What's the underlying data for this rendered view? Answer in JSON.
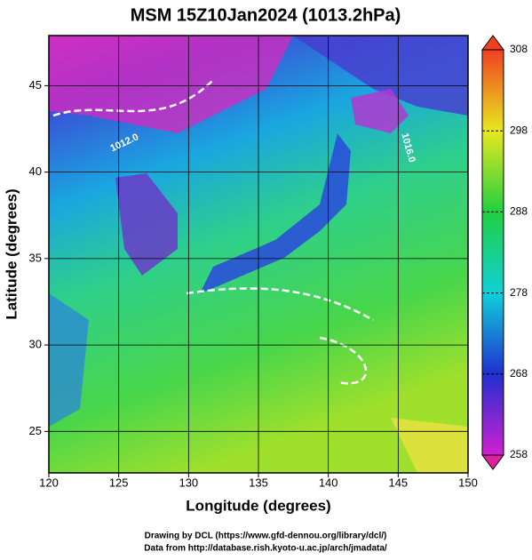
{
  "title": "MSM 15Z10Jan2024 (1013.2hPa)",
  "x_axis": {
    "label": "Longitude (degrees)",
    "lim": [
      120,
      150
    ],
    "ticks": [
      120,
      125,
      130,
      135,
      140,
      145,
      150
    ]
  },
  "y_axis": {
    "label": "Latitude  (degrees)",
    "lim": [
      22.6,
      47.9
    ],
    "ticks": [
      25,
      30,
      35,
      40,
      45
    ]
  },
  "colorbar": {
    "lim": [
      258,
      308
    ],
    "ticks": [
      258,
      268,
      278,
      288,
      298,
      308
    ]
  },
  "annotations": [
    "1012.0",
    "1016.0"
  ],
  "footer": [
    "Drawing by DCL (https://www.gfd-dennou.org/library/dcl/)",
    "Data from http://database.rish.kyoto-u.ac.jp/arch/jmadata/"
  ]
}
